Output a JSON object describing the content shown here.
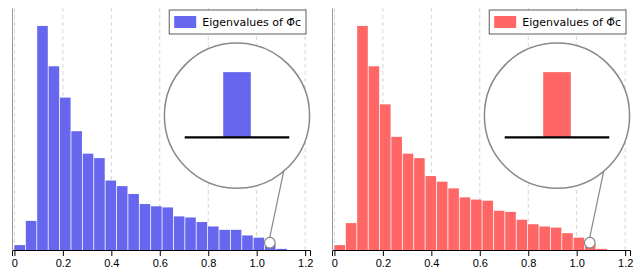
{
  "chart_data": [
    {
      "type": "histogram",
      "bins": [
        0,
        0.047,
        0.094,
        0.141,
        0.188,
        0.235,
        0.282,
        0.329,
        0.376,
        0.423,
        0.47,
        0.517,
        0.564,
        0.611,
        0.658,
        0.705,
        0.752,
        0.799,
        0.846,
        0.893,
        0.94,
        0.987,
        1.034,
        1.081,
        1.128
      ],
      "series": [
        {
          "name": "Eigenvalues of Φ̄c",
          "color": "#6666ee",
          "values": [
            0.022,
            0.13,
            1.0,
            0.82,
            0.68,
            0.53,
            0.43,
            0.41,
            0.31,
            0.285,
            0.25,
            0.205,
            0.195,
            0.19,
            0.15,
            0.145,
            0.125,
            0.105,
            0.09,
            0.09,
            0.065,
            0.055,
            0.025,
            0.005
          ]
        }
      ],
      "xlim": [
        -0.01,
        1.22
      ],
      "xticks": [
        0,
        0.2,
        0.4,
        0.6,
        0.8,
        {
          "value": 1,
          "label": "1.0"
        },
        1.2
      ],
      "ylim": [
        0,
        1.08
      ],
      "grid": true,
      "legend": "upper right",
      "tick_labels": "x"
    },
    {
      "type": "histogram",
      "bins": [
        0,
        0.047,
        0.094,
        0.141,
        0.188,
        0.235,
        0.282,
        0.329,
        0.376,
        0.423,
        0.47,
        0.517,
        0.564,
        0.611,
        0.658,
        0.705,
        0.752,
        0.799,
        0.846,
        0.893,
        0.94,
        0.987,
        1.034,
        1.081,
        1.128
      ],
      "series": [
        {
          "name": "Eigenvalues of Φ̃c",
          "color": "#ff6666",
          "values": [
            0.022,
            0.12,
            1.0,
            0.82,
            0.65,
            0.505,
            0.43,
            0.41,
            0.33,
            0.305,
            0.275,
            0.235,
            0.225,
            0.22,
            0.175,
            0.17,
            0.135,
            0.115,
            0.105,
            0.1,
            0.075,
            0.055,
            0.03,
            0.005
          ]
        }
      ],
      "xlim": [
        -0.01,
        1.22
      ],
      "xticks": [
        0,
        0.2,
        0.4,
        0.6,
        0.8,
        {
          "value": 1,
          "label": "1.0"
        },
        1.2
      ],
      "ylim": [
        0,
        1.08
      ],
      "grid": true,
      "legend": "upper right",
      "tick_labels": "x"
    }
  ]
}
